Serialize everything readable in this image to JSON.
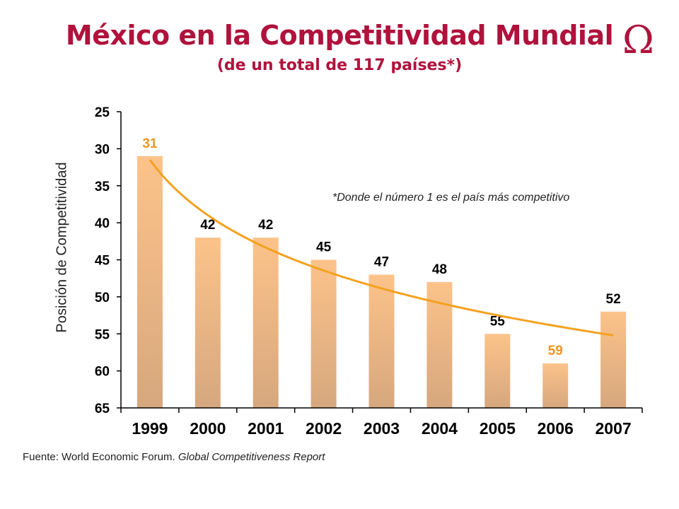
{
  "header": {
    "title": "México en la Competitividad Mundial",
    "subtitle": "(de un total de 117 países*)",
    "logo_symbol": "Ω"
  },
  "note": "*Donde el número 1 es el país más  competitivo",
  "source": {
    "prefix": "Fuente: World Economic Forum. ",
    "publication": "Global Competitiveness Report"
  },
  "colors": {
    "brand": "#b0123c",
    "bar_top": "#fcc38a",
    "bar_bottom": "#d6a77e",
    "trend": "#f4a11f",
    "highlight_label": "#f0961e"
  },
  "chart_data": {
    "type": "bar",
    "title": "México en la Competitividad Mundial",
    "subtitle": "(de un total de 117 países*)",
    "xlabel": "",
    "ylabel": "Posición de Competitividad",
    "y_inverted": true,
    "ylim": [
      25,
      65
    ],
    "yticks": [
      25,
      30,
      35,
      40,
      45,
      50,
      55,
      60,
      65
    ],
    "categories": [
      "1999",
      "2000",
      "2001",
      "2002",
      "2003",
      "2004",
      "2005",
      "2006",
      "2007"
    ],
    "values": [
      31,
      42,
      42,
      45,
      47,
      48,
      55,
      59,
      52
    ],
    "highlighted_labels": [
      "1999",
      "2006"
    ],
    "trendline": {
      "type": "logarithmic",
      "start": 31.5,
      "end": 55.2
    },
    "grid": false,
    "legend": "none"
  }
}
